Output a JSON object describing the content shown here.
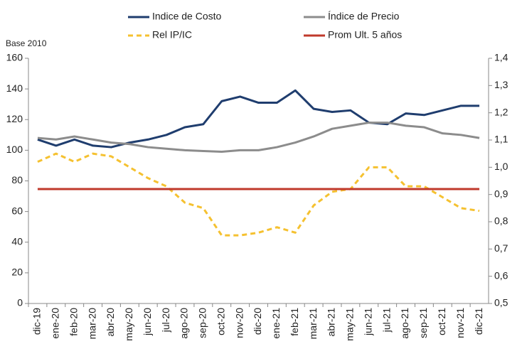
{
  "chart_data": {
    "type": "line",
    "annotation": "Base 2010",
    "categories": [
      "dic-19",
      "ene-20",
      "feb-20",
      "mar-20",
      "abr-20",
      "may-20",
      "jun-20",
      "jul-20",
      "ago-20",
      "sep-20",
      "oct-20",
      "nov-20",
      "dic-20",
      "ene-21",
      "feb-21",
      "mar-21",
      "abr-21",
      "may-21",
      "jun-21",
      "jul-21",
      "ago-21",
      "sep-21",
      "oct-21",
      "nov-21",
      "dic-21"
    ],
    "ylim": [
      0,
      160
    ],
    "yticks": [
      0,
      20,
      40,
      60,
      80,
      100,
      120,
      140,
      160
    ],
    "y2lim": [
      0.5,
      1.4
    ],
    "y2ticks": [
      {
        "value": 0.5,
        "label": "0,5"
      },
      {
        "value": 0.6,
        "label": "0,6"
      },
      {
        "value": 0.7,
        "label": "0,7"
      },
      {
        "value": 0.8,
        "label": "0,8"
      },
      {
        "value": 0.9,
        "label": "0,9"
      },
      {
        "value": 1.0,
        "label": "1,0"
      },
      {
        "value": 1.1,
        "label": "1,1"
      },
      {
        "value": 1.2,
        "label": "1,2"
      },
      {
        "value": 1.3,
        "label": "1,3"
      },
      {
        "value": 1.4,
        "label": "1,4"
      }
    ],
    "grid": false,
    "series": [
      {
        "name": "Indice de Costo",
        "color": "#1f3d6e",
        "dash": false,
        "axis": "y",
        "values": [
          107,
          103,
          107,
          103,
          102,
          105,
          107,
          110,
          115,
          117,
          132,
          135,
          131,
          131,
          139,
          127,
          125,
          126,
          118,
          117,
          124,
          123,
          126,
          129,
          129
        ]
      },
      {
        "name": "Índice de Precio",
        "color": "#8c8c8c",
        "dash": false,
        "axis": "y",
        "values": [
          108,
          107,
          109,
          107,
          105,
          104,
          102,
          101,
          100,
          99.5,
          99,
          100,
          100,
          102,
          105,
          109,
          114,
          116,
          118,
          118,
          116,
          115,
          111,
          110,
          108
        ]
      },
      {
        "name": "Rel IP/IC",
        "color": "#f5c130",
        "dash": true,
        "axis": "y2",
        "values": [
          1.02,
          1.05,
          1.02,
          1.05,
          1.04,
          1.0,
          0.96,
          0.93,
          0.87,
          0.85,
          0.75,
          0.75,
          0.76,
          0.78,
          0.76,
          0.86,
          0.91,
          0.92,
          1.0,
          1.0,
          0.93,
          0.93,
          0.89,
          0.85,
          0.84
        ]
      },
      {
        "name": "Prom Ult. 5 años",
        "color": "#c0392b",
        "dash": false,
        "axis": "y2",
        "values": [
          0.92,
          0.92,
          0.92,
          0.92,
          0.92,
          0.92,
          0.92,
          0.92,
          0.92,
          0.92,
          0.92,
          0.92,
          0.92,
          0.92,
          0.92,
          0.92,
          0.92,
          0.92,
          0.92,
          0.92,
          0.92,
          0.92,
          0.92,
          0.92,
          0.92
        ]
      }
    ]
  }
}
